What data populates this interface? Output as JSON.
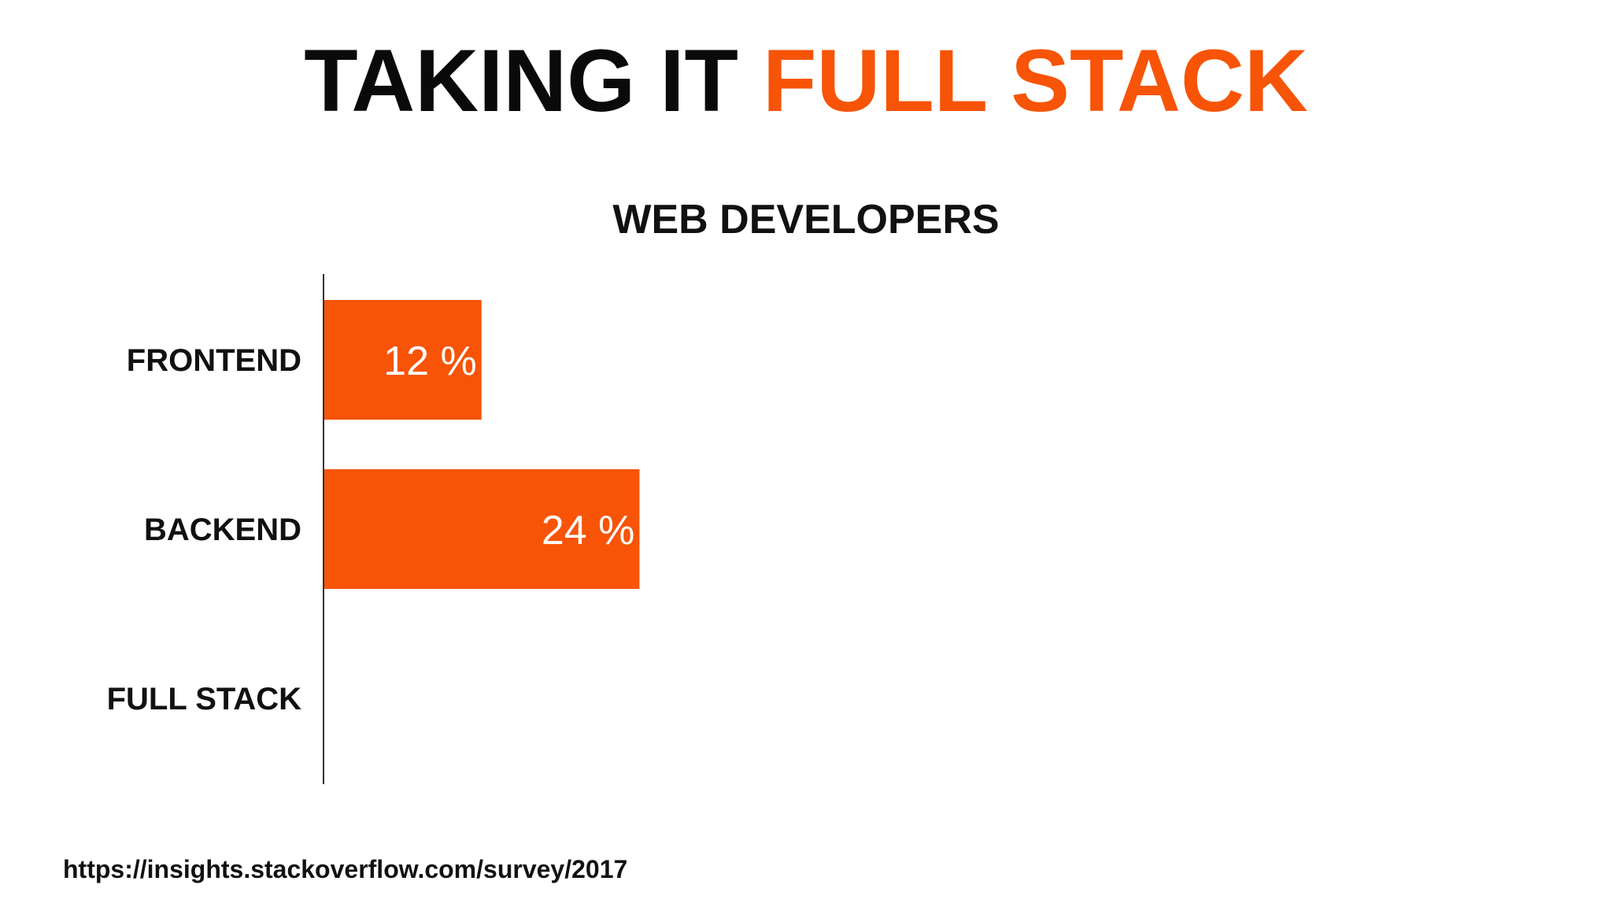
{
  "slide": {
    "title_part1": "TAKING IT ",
    "title_part2": "FULL STACK",
    "source": "https://insights.stackoverflow.com/survey/2017"
  },
  "colors": {
    "accent": "#f75407",
    "text": "#111111",
    "background": "#ffffff"
  },
  "chart_data": {
    "type": "bar",
    "orientation": "horizontal",
    "title": "WEB DEVELOPERS",
    "categories": [
      "FRONTEND",
      "BACKEND",
      "FULL STACK"
    ],
    "values": [
      12,
      24,
      null
    ],
    "value_labels": [
      "12 %",
      "24 %",
      ""
    ],
    "unit": "%",
    "xlim": [
      0,
      95
    ],
    "grid": false,
    "legend": "none",
    "bar_color": "#f75407"
  }
}
